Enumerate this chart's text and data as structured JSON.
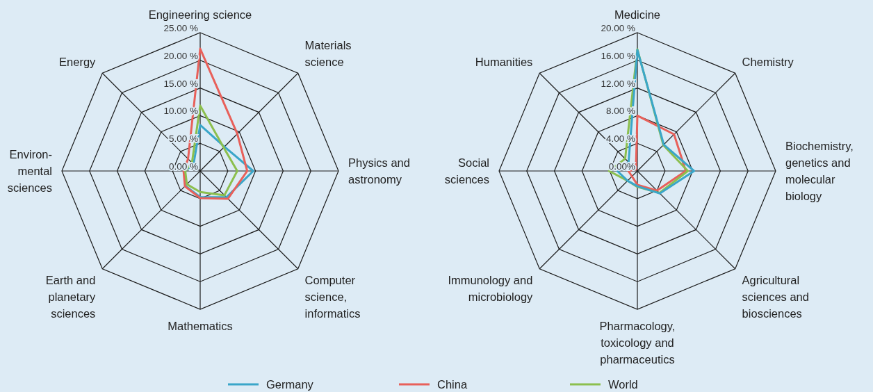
{
  "chart_data": [
    {
      "type": "radar",
      "categories": [
        "Engineering science",
        "Materials\nscience",
        "Physics and\nastronomy",
        "Computer\nscience,\ninformatics",
        "Mathematics",
        "Earth and\nplanetary\nsciences",
        "Environ-\nmental\nsciences",
        "Energy"
      ],
      "ylim": [
        0,
        25
      ],
      "yticks": [
        {
          "value": 0,
          "label": "0.00 %"
        },
        {
          "value": 5,
          "label": "5.00 %"
        },
        {
          "value": 10,
          "label": "10.00 %"
        },
        {
          "value": 15,
          "label": "15.00 %"
        },
        {
          "value": 20,
          "label": "20.00 %"
        },
        {
          "value": 25,
          "label": "25.00 %"
        }
      ],
      "legend": "bottom",
      "series": [
        {
          "name": "Germany",
          "color": "#3aa6c9",
          "values": [
            8.3,
            6.2,
            9.6,
            6.7,
            4.7,
            3.8,
            2.8,
            1.7
          ]
        },
        {
          "name": "China",
          "color": "#e8605a",
          "values": [
            22.1,
            9.5,
            8.5,
            7.1,
            4.9,
            3.9,
            3.0,
            3.1
          ]
        },
        {
          "name": "World",
          "color": "#8cbf4e",
          "values": [
            11.8,
            6.0,
            6.7,
            6.2,
            3.8,
            3.4,
            2.7,
            2.1
          ]
        }
      ]
    },
    {
      "type": "radar",
      "categories": [
        "Medicine",
        "Chemistry",
        "Biochemistry,\ngenetics and\nmolecular\nbiology",
        "Agricultural\nsciences and\nbiosciences",
        "Pharmacology,\ntoxicology and\npharmaceutics",
        "Immunology and\nmicrobiology",
        "Social\nsciences",
        "Humanities"
      ],
      "ylim": [
        0,
        20
      ],
      "yticks": [
        {
          "value": 0,
          "label": "0.00%"
        },
        {
          "value": 4,
          "label": "4.00 %"
        },
        {
          "value": 8,
          "label": "8.00 %"
        },
        {
          "value": 12,
          "label": "12.00 %"
        },
        {
          "value": 16,
          "label": "16.00 %"
        },
        {
          "value": 20,
          "label": "20.00 %"
        }
      ],
      "series": [
        {
          "color": "#e8605a",
          "values": [
            8.0,
            7.5,
            7.0,
            4.0,
            2.0,
            1.1,
            1.3,
            0.3
          ]
        },
        {
          "color": "#8cbf4e",
          "values": [
            17.6,
            5.3,
            7.3,
            4.5,
            2.3,
            2.0,
            4.1,
            2.5
          ]
        },
        {
          "color": "#3aa6c9",
          "values": [
            17.5,
            5.4,
            8.2,
            4.6,
            2.2,
            2.0,
            2.9,
            1.8
          ]
        }
      ]
    }
  ]
}
